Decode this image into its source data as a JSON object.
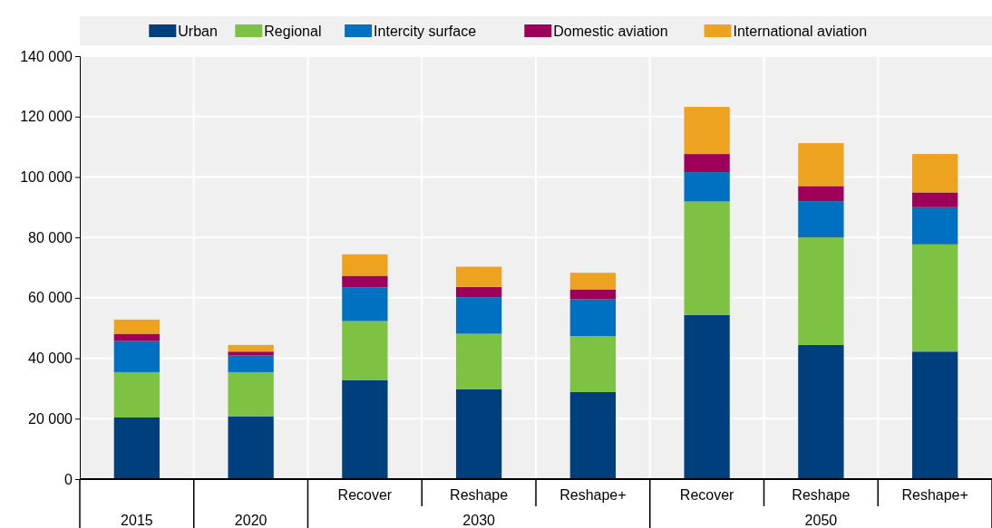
{
  "chart_data": {
    "type": "bar",
    "stacked": true,
    "categories": [
      "2015",
      "2020",
      "Recover",
      "Reshape",
      "Reshape+",
      "Recover",
      "Reshape",
      "Reshape+"
    ],
    "series": [
      {
        "name": "Urban",
        "color": "#003f7d",
        "values": [
          20400,
          20700,
          32800,
          29800,
          28800,
          54300,
          44400,
          42200
        ]
      },
      {
        "name": "Regional",
        "color": "#7dc242",
        "values": [
          15000,
          14700,
          19500,
          18300,
          18500,
          37600,
          35600,
          35500
        ]
      },
      {
        "name": "Intercity surface",
        "color": "#0071c1",
        "values": [
          10300,
          5500,
          11200,
          12100,
          12200,
          9700,
          12000,
          12300
        ]
      },
      {
        "name": "Domestic aviation",
        "color": "#9e0059",
        "values": [
          2400,
          1300,
          3800,
          3400,
          3300,
          6000,
          5000,
          4900
        ]
      },
      {
        "name": "International aviation",
        "color": "#eea320",
        "values": [
          4700,
          2200,
          7100,
          6700,
          5500,
          15600,
          14200,
          12700
        ]
      }
    ],
    "ylim": [
      0,
      140000
    ],
    "yticks": [
      {
        "value": 0,
        "label": "0"
      },
      {
        "value": 20000,
        "label": "20 000"
      },
      {
        "value": 40000,
        "label": "40 000"
      },
      {
        "value": 60000,
        "label": "60 000"
      },
      {
        "value": 80000,
        "label": "80 000"
      },
      {
        "value": 100000,
        "label": "100 000"
      },
      {
        "value": 120000,
        "label": "120 000"
      },
      {
        "value": 140000,
        "label": "140 000"
      }
    ],
    "grid": true,
    "legend": "top",
    "annotations": [
      "2030",
      "2050"
    ]
  }
}
